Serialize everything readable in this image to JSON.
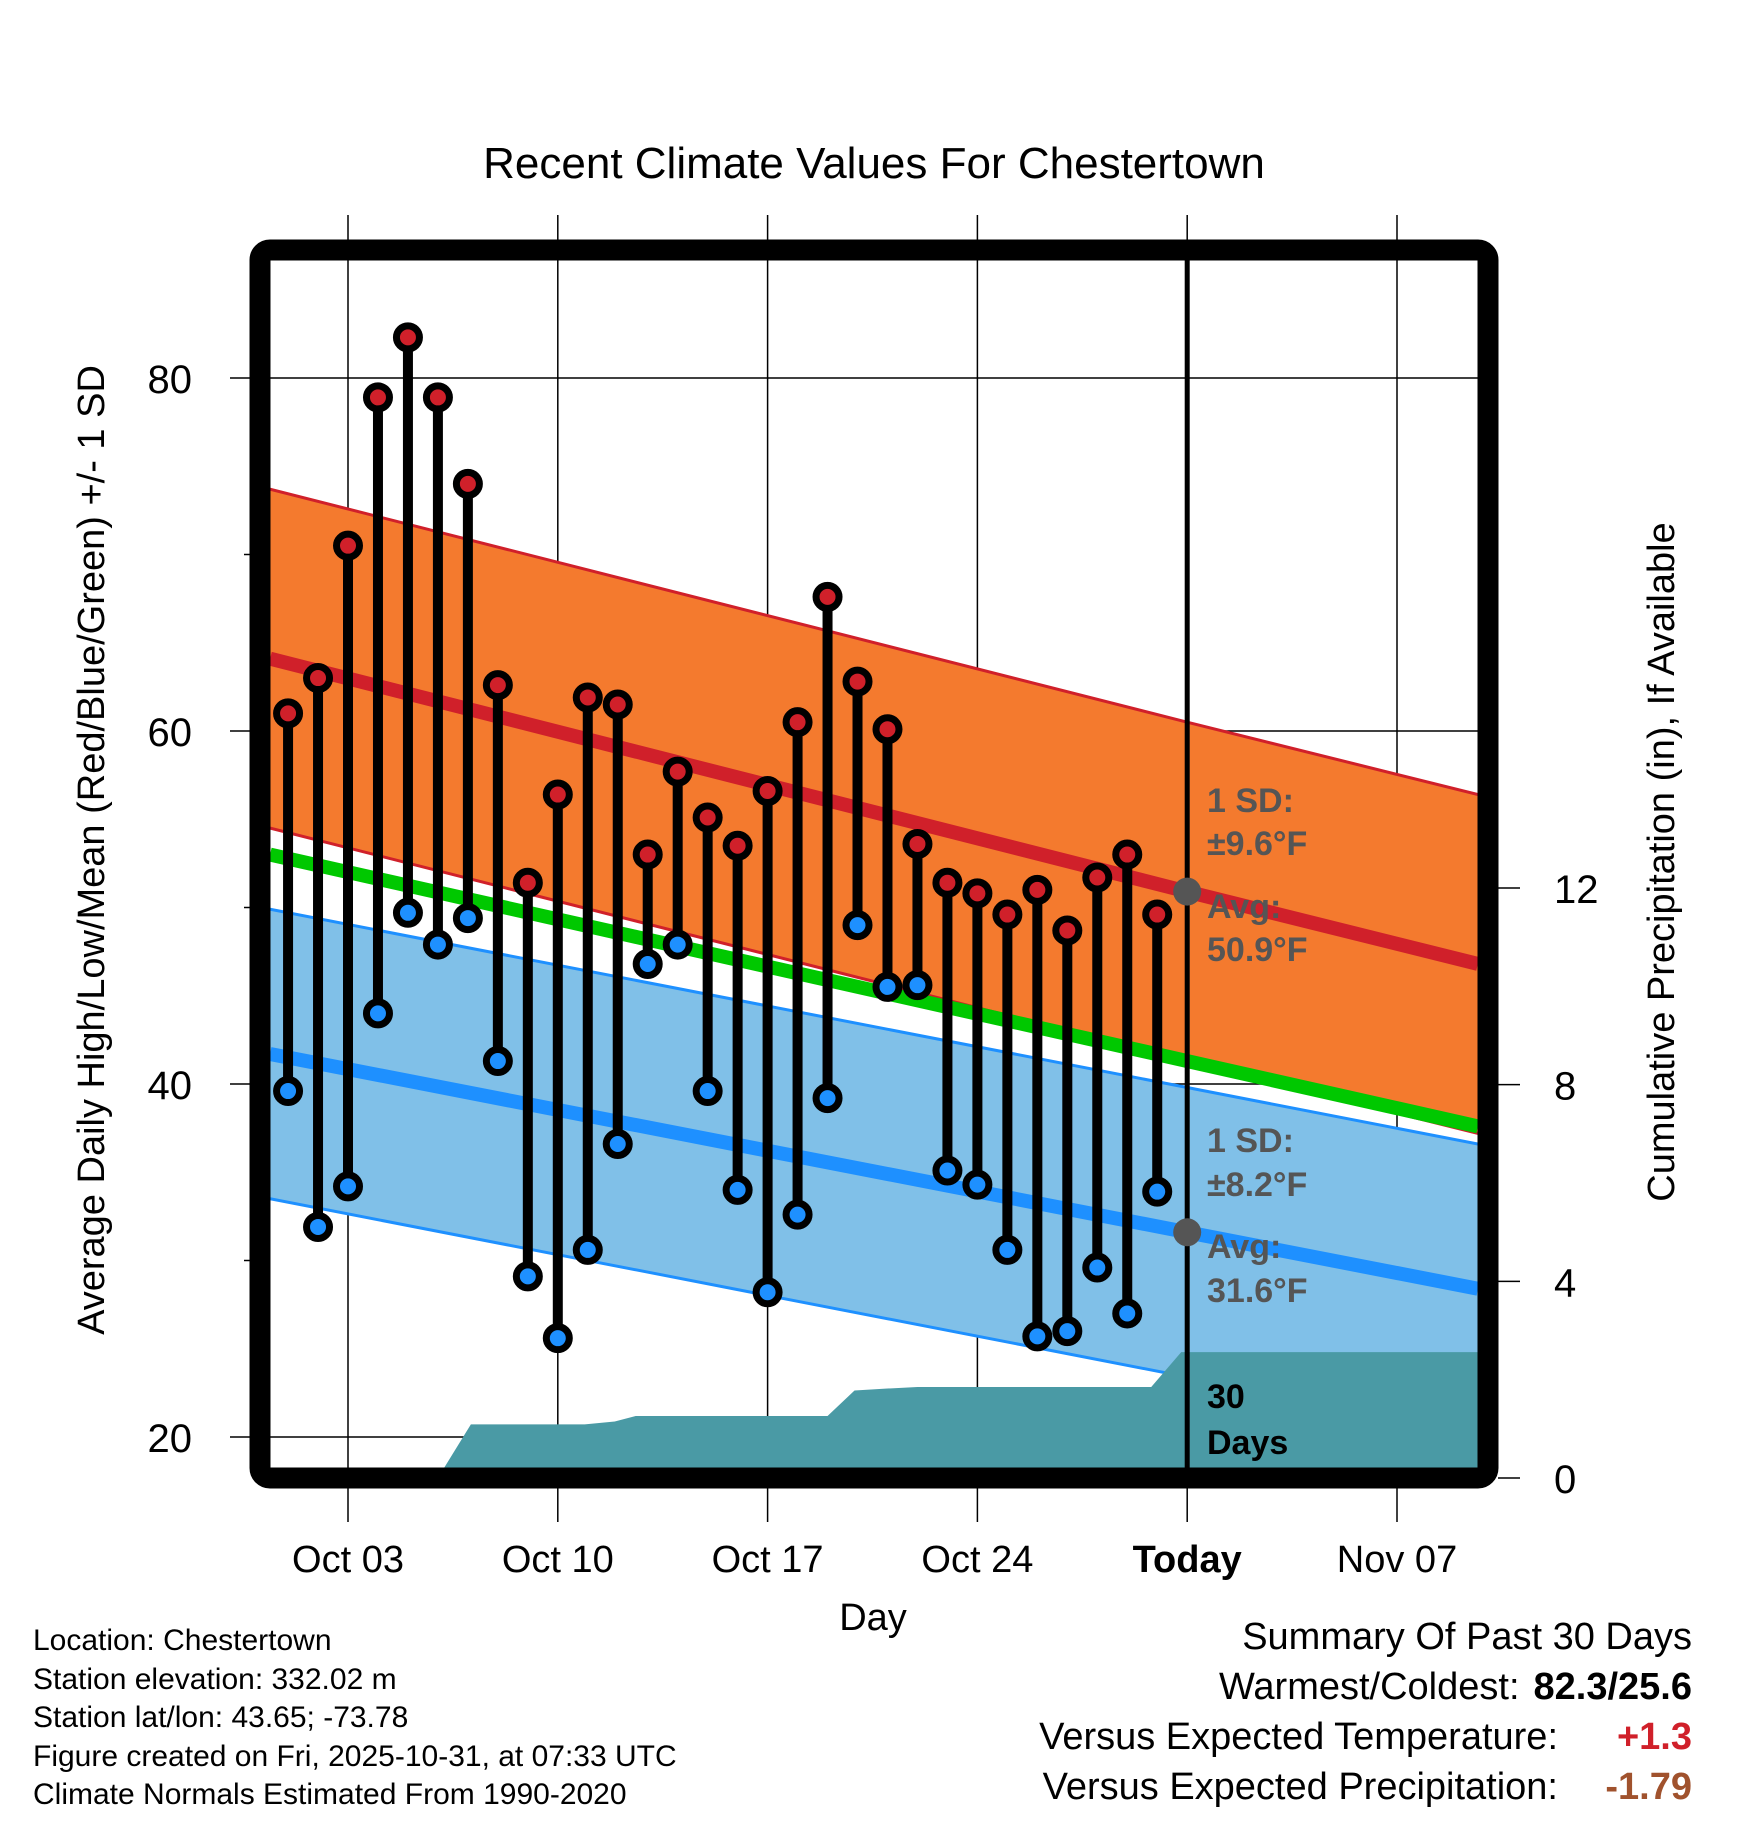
{
  "chart_data": {
    "type": "line",
    "title": "Recent Climate Values For Chestertown",
    "xlabel": "Day",
    "ylabel": "Average Daily High/Low/Mean (Red/Blue/Green) +/- 1 SD",
    "y2label": "Cumulative Precipitation (in), If Available",
    "ylim": [
      18,
      87
    ],
    "y2lim": [
      0,
      18.5
    ],
    "yticks": [
      20,
      40,
      60,
      80
    ],
    "yminor_ticks": [
      30,
      50,
      70
    ],
    "y2ticks": [
      0,
      4,
      8,
      12
    ],
    "xlim_day": [
      0.4,
      40.7
    ],
    "xticks": [
      {
        "day": 3,
        "label": "Oct 03"
      },
      {
        "day": 10,
        "label": "Oct 10"
      },
      {
        "day": 17,
        "label": "Oct 17"
      },
      {
        "day": 24,
        "label": "Oct 24"
      },
      {
        "day": 31,
        "label": "Today"
      },
      {
        "day": 38,
        "label": "Nov 07"
      }
    ],
    "grid": true,
    "today_day": 31,
    "daily": {
      "days": [
        1,
        2,
        3,
        4,
        5,
        6,
        7,
        8,
        9,
        10,
        11,
        12,
        13,
        14,
        15,
        16,
        17,
        18,
        19,
        20,
        21,
        22,
        23,
        24,
        25,
        26,
        27,
        28,
        29,
        30
      ],
      "high": [
        61.0,
        63.0,
        70.5,
        78.9,
        82.3,
        78.9,
        74.0,
        62.6,
        51.4,
        56.4,
        61.9,
        61.5,
        53.0,
        57.7,
        55.1,
        53.5,
        56.6,
        60.5,
        67.6,
        62.8,
        60.1,
        53.6,
        51.4,
        50.8,
        49.6,
        51.0,
        48.7,
        51.7,
        53.0,
        49.6
      ],
      "low": [
        39.6,
        31.9,
        34.2,
        44.0,
        49.7,
        47.9,
        49.4,
        41.3,
        29.1,
        25.6,
        30.6,
        36.6,
        46.8,
        47.9,
        39.6,
        34.0,
        28.2,
        32.6,
        39.2,
        49.0,
        45.5,
        45.6,
        35.1,
        34.3,
        30.6,
        25.7,
        26.0,
        29.6,
        27.0,
        33.9
      ]
    },
    "normals": {
      "high_mean": {
        "start": [
          0.4,
          64.1
        ],
        "today": [
          31,
          50.9
        ],
        "end": [
          40.7,
          46.8
        ]
      },
      "low_mean": {
        "start": [
          0.4,
          41.7
        ],
        "today": [
          31,
          31.6
        ],
        "end": [
          40.7,
          28.4
        ]
      },
      "mean": {
        "start": [
          0.4,
          53.0
        ],
        "today": [
          31,
          41.3
        ],
        "end": [
          40.7,
          37.6
        ]
      },
      "high_sd": 9.6,
      "low_sd": 8.2
    },
    "precip_cumulative": {
      "points": [
        [
          0.4,
          0
        ],
        [
          5.7,
          0
        ],
        [
          6.2,
          0.2
        ],
        [
          7.1,
          1.09
        ],
        [
          10.9,
          1.09
        ],
        [
          11.9,
          1.15
        ],
        [
          12.6,
          1.26
        ],
        [
          19.0,
          1.26
        ],
        [
          19.9,
          1.78
        ],
        [
          21.0,
          1.82
        ],
        [
          22.0,
          1.85
        ],
        [
          29.8,
          1.85
        ],
        [
          30.8,
          2.56
        ],
        [
          40.7,
          2.56
        ]
      ],
      "label_line1": "30",
      "label_line2": "Days"
    },
    "annotations": {
      "high_sd_line1": "1 SD:",
      "high_sd_line2": "±9.6°F",
      "high_avg_line1": "Avg:",
      "high_avg_line2": "50.9°F",
      "low_sd_line1": "1 SD:",
      "low_sd_line2": "±8.2°F",
      "low_avg_line1": "Avg:",
      "low_avg_line2": "31.6°F"
    },
    "colors": {
      "high_band": "#f47a2e",
      "high_line": "#d0202a",
      "low_band": "#80c0e8",
      "low_line": "#1e90ff",
      "mean_line": "#00c800",
      "precip": "#4a9aa5",
      "high_dot": "#d0202a",
      "low_dot": "#1e90ff",
      "annotation_text": "#555555"
    }
  },
  "info": {
    "location": "Location: Chestertown",
    "elevation": "Station elevation: 332.02 m",
    "latlon": "Station lat/lon: 43.65; -73.78",
    "created": "Figure created on Fri, 2025-10-31, at 07:33 UTC",
    "normals": "Climate Normals Estimated From 1990-2020"
  },
  "summary": {
    "title": "Summary Of Past 30 Days",
    "warmest_coldest_label": "Warmest/Coldest:",
    "warmest_coldest_value": "82.3/25.6",
    "temp_label": "Versus Expected Temperature:",
    "temp_value": "+1.3",
    "precip_label": "Versus Expected Precipitation:",
    "precip_value": "-1.79"
  }
}
